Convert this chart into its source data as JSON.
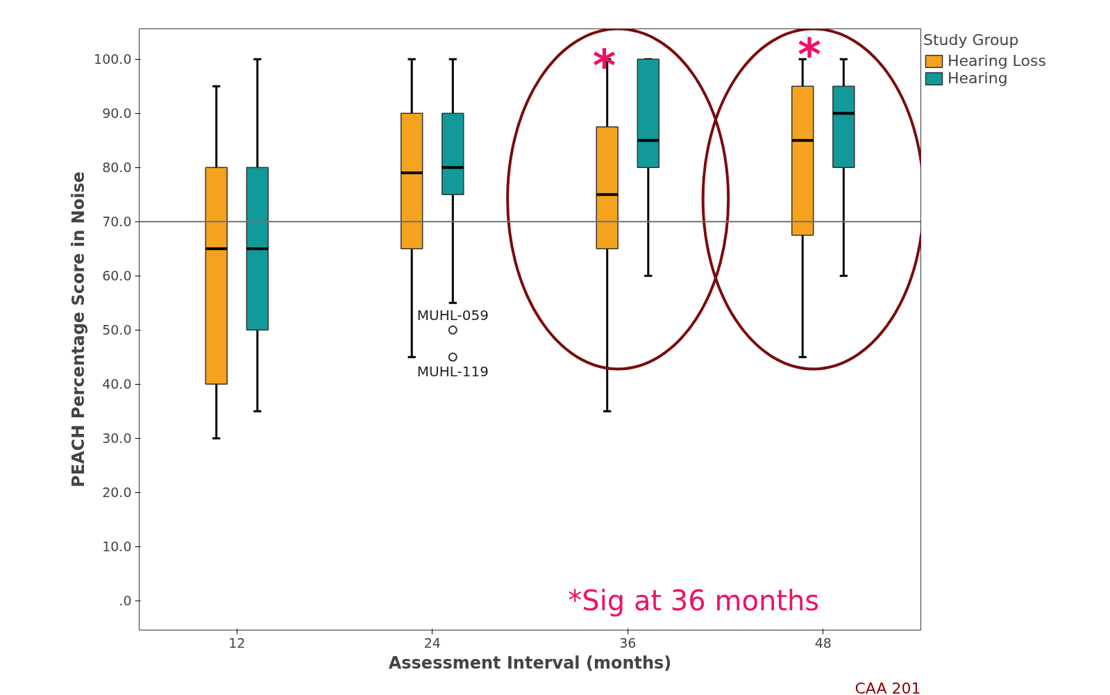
{
  "chart_data": {
    "type": "box",
    "xlabel": "Assessment Interval (months)",
    "ylabel": "PEACH Percentage Score in Noise",
    "legend_title": "Study Group",
    "legend": "top right",
    "categories": [
      "12",
      "24",
      "36",
      "48"
    ],
    "ylim": [
      -5.4,
      105.6
    ],
    "yticks": [
      {
        "value": 0,
        "label": ".0"
      },
      {
        "value": 10,
        "label": "10.0"
      },
      {
        "value": 20,
        "label": "20.0"
      },
      {
        "value": 30,
        "label": "30.0"
      },
      {
        "value": 40,
        "label": "40.0"
      },
      {
        "value": 50,
        "label": "50.0"
      },
      {
        "value": 60,
        "label": "60.0"
      },
      {
        "value": 70,
        "label": "70.0"
      },
      {
        "value": 80,
        "label": "80.0"
      },
      {
        "value": 90,
        "label": "90.0"
      },
      {
        "value": 100,
        "label": "100.0"
      }
    ],
    "grid": false,
    "series": [
      {
        "name": "Hearing Loss",
        "color": "#f5a31e",
        "boxes": [
          {
            "low": 30,
            "q1": 40,
            "median": 65,
            "q3": 80,
            "high": 95
          },
          {
            "low": 45,
            "q1": 65,
            "median": 79,
            "q3": 90,
            "high": 100
          },
          {
            "low": 35,
            "q1": 65,
            "median": 75,
            "q3": 87.5,
            "high": 100
          },
          {
            "low": 45,
            "q1": 67.5,
            "median": 85,
            "q3": 95,
            "high": 100
          }
        ]
      },
      {
        "name": "Hearing",
        "color": "#12999a",
        "boxes": [
          {
            "low": 35,
            "q1": 50,
            "median": 65,
            "q3": 80,
            "high": 100
          },
          {
            "low": 55,
            "q1": 75,
            "median": 80,
            "q3": 90,
            "high": 100,
            "outliers": [
              50,
              45
            ]
          },
          {
            "low": 60,
            "q1": 80,
            "median": 85,
            "q3": 100,
            "high": 100
          },
          {
            "low": 60,
            "q1": 80,
            "median": 90,
            "q3": 95,
            "high": 100
          }
        ]
      }
    ],
    "ref_lines": [
      {
        "axis": "y",
        "value": 70,
        "label": null,
        "color": "#707070"
      }
    ],
    "annotations": [
      "MUHL-059",
      "MUHL-119",
      "*",
      "*",
      "*Sig at 36 months",
      "CAA 201"
    ]
  }
}
